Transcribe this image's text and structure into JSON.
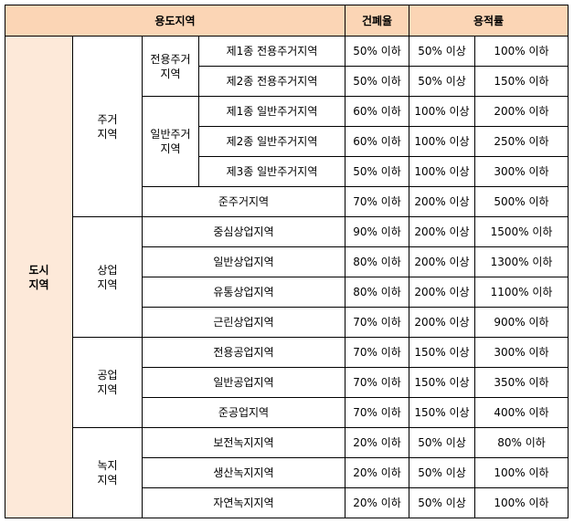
{
  "header": {
    "zone": "용도지역",
    "bcr": "건폐율",
    "far": "용적률"
  },
  "city": "도시\n지역",
  "groups": [
    {
      "label": "주거\n지역",
      "subgroups": [
        {
          "label": "전용주거\n지역",
          "rows": [
            {
              "name": "제1종 전용주거지역",
              "bcr": "50% 이하",
              "far_min": "50% 이상",
              "far_max": "100% 이하"
            },
            {
              "name": "제2종 전용주거지역",
              "bcr": "50% 이하",
              "far_min": "50% 이상",
              "far_max": "150% 이하"
            }
          ]
        },
        {
          "label": "일반주거\n지역",
          "rows": [
            {
              "name": "제1종 일반주거지역",
              "bcr": "60% 이하",
              "far_min": "100% 이상",
              "far_max": "200% 이하"
            },
            {
              "name": "제2종 일반주거지역",
              "bcr": "60% 이하",
              "far_min": "100% 이상",
              "far_max": "250% 이하"
            },
            {
              "name": "제3종 일반주거지역",
              "bcr": "50% 이하",
              "far_min": "100% 이상",
              "far_max": "300% 이하"
            }
          ]
        }
      ],
      "extra": [
        {
          "name": "준주거지역",
          "bcr": "70% 이하",
          "far_min": "200% 이상",
          "far_max": "500% 이하"
        }
      ]
    },
    {
      "label": "상업\n지역",
      "rows": [
        {
          "name": "중심상업지역",
          "bcr": "90% 이하",
          "far_min": "200% 이상",
          "far_max": "1500% 이하"
        },
        {
          "name": "일반상업지역",
          "bcr": "80% 이하",
          "far_min": "200% 이상",
          "far_max": "1300% 이하"
        },
        {
          "name": "유통상업지역",
          "bcr": "80% 이하",
          "far_min": "200% 이상",
          "far_max": "1100% 이하"
        },
        {
          "name": "근린상업지역",
          "bcr": "70% 이하",
          "far_min": "200% 이상",
          "far_max": "900% 이하"
        }
      ]
    },
    {
      "label": "공업\n지역",
      "rows": [
        {
          "name": "전용공업지역",
          "bcr": "70% 이하",
          "far_min": "150% 이상",
          "far_max": "300% 이하"
        },
        {
          "name": "일반공업지역",
          "bcr": "70% 이하",
          "far_min": "150% 이상",
          "far_max": "350% 이하"
        },
        {
          "name": "준공업지역",
          "bcr": "70% 이하",
          "far_min": "150% 이상",
          "far_max": "400% 이하"
        }
      ]
    },
    {
      "label": "녹지\n지역",
      "rows": [
        {
          "name": "보전녹지지역",
          "bcr": "20% 이하",
          "far_min": "50% 이상",
          "far_max": "80% 이하"
        },
        {
          "name": "생산녹지지역",
          "bcr": "20% 이하",
          "far_min": "50% 이상",
          "far_max": "100% 이하"
        },
        {
          "name": "자연녹지지역",
          "bcr": "20% 이하",
          "far_min": "50% 이상",
          "far_max": "100% 이하"
        }
      ]
    }
  ]
}
